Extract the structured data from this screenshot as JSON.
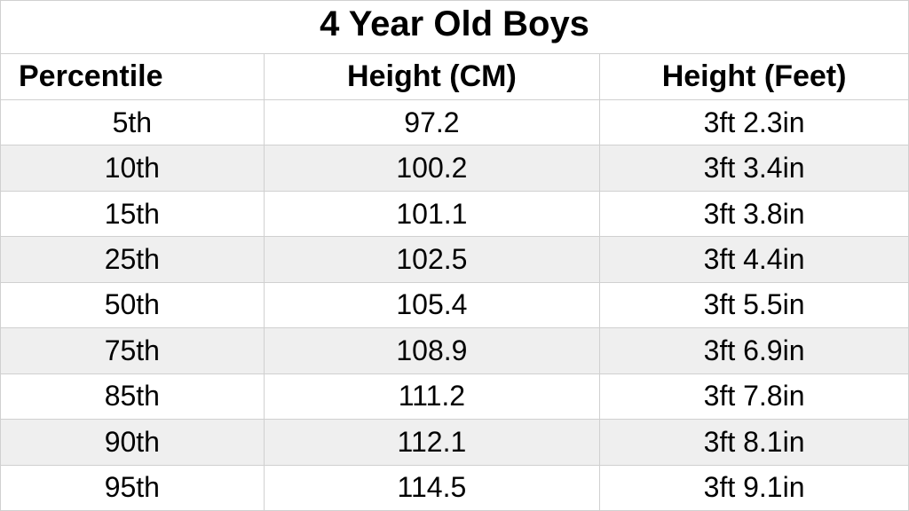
{
  "table": {
    "type": "table",
    "title": "4 Year Old Boys",
    "title_fontsize": 40,
    "header_fontsize": 34,
    "cell_fontsize": 32,
    "font_family": "Arial",
    "background_color": "#ffffff",
    "alt_row_color": "#efefef",
    "grid_color": "#d0d0d0",
    "text_color": "#000000",
    "columns": [
      {
        "key": "percentile",
        "label": "Percentile",
        "width_pct": 29,
        "align": "left"
      },
      {
        "key": "height_cm",
        "label": "Height (CM)",
        "width_pct": 37,
        "align": "center"
      },
      {
        "key": "height_ft",
        "label": "Height (Feet)",
        "width_pct": 34,
        "align": "center"
      }
    ],
    "rows": [
      {
        "percentile": "5th",
        "height_cm": "97.2",
        "height_ft": "3ft 2.3in"
      },
      {
        "percentile": "10th",
        "height_cm": "100.2",
        "height_ft": "3ft 3.4in"
      },
      {
        "percentile": "15th",
        "height_cm": "101.1",
        "height_ft": "3ft 3.8in"
      },
      {
        "percentile": "25th",
        "height_cm": "102.5",
        "height_ft": "3ft 4.4in"
      },
      {
        "percentile": "50th",
        "height_cm": "105.4",
        "height_ft": "3ft 5.5in"
      },
      {
        "percentile": "75th",
        "height_cm": "108.9",
        "height_ft": "3ft 6.9in"
      },
      {
        "percentile": "85th",
        "height_cm": "111.2",
        "height_ft": "3ft 7.8in"
      },
      {
        "percentile": "90th",
        "height_cm": "112.1",
        "height_ft": "3ft 8.1in"
      },
      {
        "percentile": "95th",
        "height_cm": "114.5",
        "height_ft": "3ft 9.1in"
      }
    ]
  }
}
